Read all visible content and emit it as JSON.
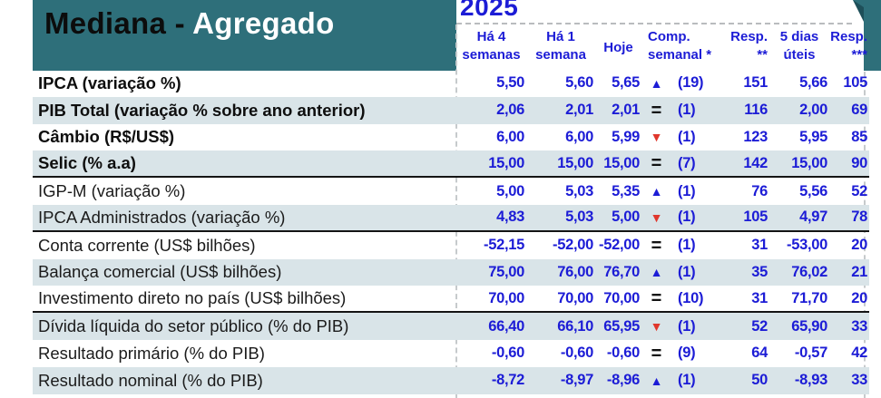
{
  "banner": {
    "title_black": "Mediana - ",
    "title_white": "Agregado"
  },
  "header": {
    "year": "2025",
    "columns": [
      {
        "line1": "Há 4",
        "line2": "semanas"
      },
      {
        "line1": "Há 1",
        "line2": "semana"
      },
      {
        "line1": "Hoje",
        "line2": ""
      },
      {
        "line1": "Comp.",
        "line2": "semanal *"
      },
      {
        "line1": "Resp.",
        "line2": "**"
      },
      {
        "line1": "5 dias",
        "line2": "úteis"
      },
      {
        "line1": "Resp.",
        "line2": "***"
      }
    ]
  },
  "colors": {
    "teal": "#2e6f7a",
    "teal_dark": "#1e4f59",
    "row_shade": "#d9e4e8",
    "value_blue": "#1c1cd6",
    "negative_red": "#e0372c",
    "divider_gray": "#b9bcbe",
    "separator_black": "#141414"
  },
  "icons": {
    "up": "▲",
    "down": "▼",
    "same": "="
  },
  "rows": [
    {
      "label": "IPCA (variação %)",
      "ha4": "5,50",
      "ha1": "5,60",
      "hoje": "5,65",
      "comp": "up",
      "count": "(19)",
      "resp2": "151",
      "dias5": "5,66",
      "resp3": "105"
    },
    {
      "label": "PIB Total (variação % sobre ano anterior)",
      "ha4": "2,06",
      "ha1": "2,01",
      "hoje": "2,01",
      "comp": "same",
      "count": "(1)",
      "resp2": "116",
      "dias5": "2,00",
      "resp3": "69"
    },
    {
      "label": "Câmbio (R$/US$)",
      "ha4": "6,00",
      "ha1": "6,00",
      "hoje": "5,99",
      "comp": "down",
      "count": "(1)",
      "resp2": "123",
      "dias5": "5,95",
      "resp3": "85"
    },
    {
      "label": "Selic (% a.a)",
      "ha4": "15,00",
      "ha1": "15,00",
      "hoje": "15,00",
      "comp": "same",
      "count": "(7)",
      "resp2": "142",
      "dias5": "15,00",
      "resp3": "90"
    },
    {
      "label": "IGP-M (variação %)",
      "ha4": "5,00",
      "ha1": "5,03",
      "hoje": "5,35",
      "comp": "up",
      "count": "(1)",
      "resp2": "76",
      "dias5": "5,56",
      "resp3": "52"
    },
    {
      "label": "IPCA Administrados (variação %)",
      "ha4": "4,83",
      "ha1": "5,03",
      "hoje": "5,00",
      "comp": "down",
      "count": "(1)",
      "resp2": "105",
      "dias5": "4,97",
      "resp3": "78"
    },
    {
      "label": "Conta corrente (US$ bilhões)",
      "ha4": "-52,15",
      "ha1": "-52,00",
      "hoje": "-52,00",
      "comp": "same",
      "count": "(1)",
      "resp2": "31",
      "dias5": "-53,00",
      "resp3": "20"
    },
    {
      "label": "Balança comercial (US$ bilhões)",
      "ha4": "75,00",
      "ha1": "76,00",
      "hoje": "76,70",
      "comp": "up",
      "count": "(1)",
      "resp2": "35",
      "dias5": "76,02",
      "resp3": "21"
    },
    {
      "label": "Investimento direto no país (US$ bilhões)",
      "ha4": "70,00",
      "ha1": "70,00",
      "hoje": "70,00",
      "comp": "same",
      "count": "(10)",
      "resp2": "31",
      "dias5": "71,70",
      "resp3": "20"
    },
    {
      "label": "Dívida líquida do setor público (% do PIB)",
      "ha4": "66,40",
      "ha1": "66,10",
      "hoje": "65,95",
      "comp": "down",
      "count": "(1)",
      "resp2": "52",
      "dias5": "65,90",
      "resp3": "33"
    },
    {
      "label": "Resultado primário (% do PIB)",
      "ha4": "-0,60",
      "ha1": "-0,60",
      "hoje": "-0,60",
      "comp": "same",
      "count": "(9)",
      "resp2": "64",
      "dias5": "-0,57",
      "resp3": "42"
    },
    {
      "label": "Resultado nominal (% do PIB)",
      "ha4": "-8,72",
      "ha1": "-8,97",
      "hoje": "-8,96",
      "comp": "up",
      "count": "(1)",
      "resp2": "50",
      "dias5": "-8,93",
      "resp3": "33"
    }
  ]
}
